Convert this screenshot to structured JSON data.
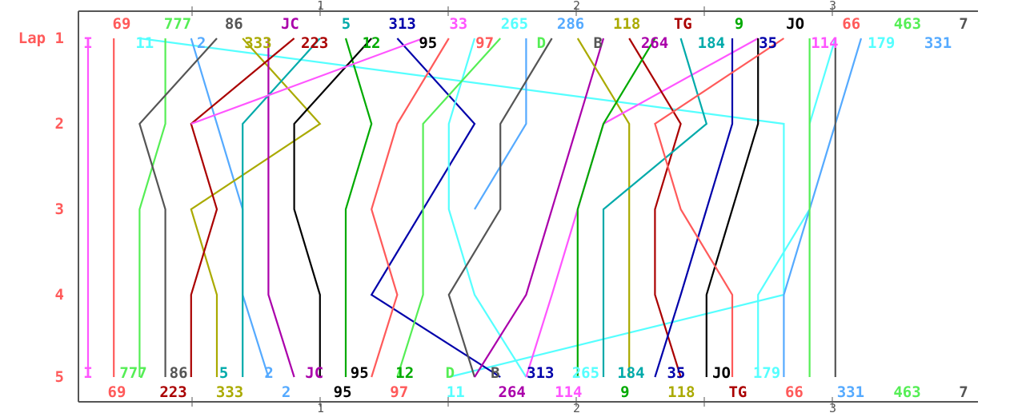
{
  "chart_data": {
    "type": "line",
    "ylabels": [
      "Lap 1",
      "2",
      "3",
      "4",
      "5"
    ],
    "top_ticks": [
      "1",
      "2",
      "3"
    ],
    "bottom_ticks": [
      "1",
      "2",
      "3"
    ],
    "cars": [
      {
        "label": "I",
        "color": "#ff55ff",
        "pos": [
          1,
          1,
          1,
          1,
          1
        ]
      },
      {
        "label": "69",
        "color": "#ff5a5a",
        "pos": [
          2,
          2,
          2,
          2,
          2
        ]
      },
      {
        "label": "11",
        "color": "#55ffff",
        "pos": [
          3,
          28,
          28,
          28,
          15
        ]
      },
      {
        "label": "777",
        "color": "#55ee55",
        "pos": [
          4,
          4,
          3,
          3,
          3
        ]
      },
      {
        "label": "2",
        "color": "#55aaff",
        "pos": [
          5,
          6,
          7,
          7,
          8
        ]
      },
      {
        "label": "86",
        "color": "#555555",
        "pos": [
          6,
          3,
          4,
          4,
          4
        ]
      },
      {
        "label": "333",
        "color": "#aaaa00",
        "pos": [
          7,
          10,
          5,
          6,
          6
        ]
      },
      {
        "label": "JC",
        "color": "#aa00aa",
        "pos": [
          8,
          8,
          8,
          8,
          9
        ]
      },
      {
        "label": "223",
        "color": "#aa0000",
        "pos": [
          9,
          5,
          6,
          5,
          5
        ]
      },
      {
        "label": "5",
        "color": "#00aaaa",
        "pos": [
          10,
          7,
          7,
          7,
          7
        ]
      },
      {
        "label": "12",
        "color": "#00aa00",
        "pos": [
          11,
          12,
          11,
          11,
          11
        ]
      },
      {
        "label": "95",
        "color": "#000000",
        "pos": [
          12,
          9,
          9,
          10,
          10
        ]
      },
      {
        "label": "313",
        "color": "#0000aa",
        "pos": [
          13,
          16,
          14,
          12,
          17
        ]
      },
      {
        "label": "33",
        "color": "#ff55ff",
        "pos": [
          14,
          5
        ]
      },
      {
        "label": "97",
        "color": "#ff5a5a",
        "pos": [
          15,
          13,
          12,
          13,
          12
        ]
      },
      {
        "label": "265",
        "color": "#55ffff",
        "pos": [
          16,
          15,
          15,
          16,
          18
        ]
      },
      {
        "label": "D",
        "color": "#55ee55",
        "pos": [
          17,
          14,
          14,
          14,
          13
        ]
      },
      {
        "label": "286",
        "color": "#55aaff",
        "pos": [
          18,
          18,
          16
        ]
      },
      {
        "label": "B",
        "color": "#555555",
        "pos": [
          19,
          17,
          17,
          15,
          16
        ]
      },
      {
        "label": "264",
        "color": "#aa00aa",
        "pos": [
          21,
          20,
          19,
          18,
          16
        ]
      },
      {
        "label": "118",
        "color": "#aaaa00",
        "pos": [
          20,
          22,
          22,
          22,
          22
        ]
      },
      {
        "label": "114",
        "color": "#ff55ff",
        "pos": [
          27,
          21,
          20,
          19,
          18
        ]
      },
      {
        "label": "TG",
        "color": "#aa0000",
        "pos": [
          22,
          24,
          23,
          23,
          24
        ]
      },
      {
        "label": "9",
        "color": "#00aa00",
        "pos": [
          23,
          21,
          20,
          20,
          20
        ]
      },
      {
        "label": "184",
        "color": "#00aaaa",
        "pos": [
          24,
          25,
          21,
          21,
          21
        ]
      },
      {
        "label": "35",
        "color": "#0000aa",
        "pos": [
          26,
          26,
          25,
          24,
          23
        ]
      },
      {
        "label": "JO",
        "color": "#000000",
        "pos": [
          27,
          27,
          26,
          25,
          25
        ]
      },
      {
        "label": "66",
        "color": "#ff5a5a",
        "pos": [
          28,
          23,
          24,
          26,
          26
        ]
      },
      {
        "label": "179",
        "color": "#55ffff",
        "pos": [
          30,
          29,
          29,
          27,
          27
        ]
      },
      {
        "label": "331",
        "color": "#55aaff",
        "pos": [
          31,
          30,
          29,
          28,
          28
        ]
      },
      {
        "label": "463",
        "color": "#55ee55",
        "pos": [
          29,
          29,
          29,
          29,
          29
        ]
      },
      {
        "label": "7",
        "color": "#555555",
        "pos": [
          30,
          30,
          30,
          30,
          30
        ]
      }
    ],
    "top_row1": [
      {
        "label": "69",
        "color": "#ff5a5a"
      },
      {
        "label": "777",
        "color": "#55ee55"
      },
      {
        "label": "86",
        "color": "#555555"
      },
      {
        "label": "JC",
        "color": "#aa00aa"
      },
      {
        "label": "5",
        "color": "#00aaaa"
      },
      {
        "label": "313",
        "color": "#0000aa"
      },
      {
        "label": "33",
        "color": "#ff55ff"
      },
      {
        "label": "265",
        "color": "#55ffff"
      },
      {
        "label": "286",
        "color": "#55aaff"
      },
      {
        "label": "118",
        "color": "#aaaa00"
      },
      {
        "label": "TG",
        "color": "#aa0000"
      },
      {
        "label": "9",
        "color": "#00aa00"
      },
      {
        "label": "JO",
        "color": "#000000"
      },
      {
        "label": "66",
        "color": "#ff5a5a"
      },
      {
        "label": "463",
        "color": "#55ee55"
      },
      {
        "label": "7",
        "color": "#555555"
      }
    ],
    "top_row2": [
      {
        "label": "I",
        "color": "#ff55ff"
      },
      {
        "label": "11",
        "color": "#55ffff"
      },
      {
        "label": "2",
        "color": "#55aaff"
      },
      {
        "label": "333",
        "color": "#aaaa00"
      },
      {
        "label": "223",
        "color": "#aa0000"
      },
      {
        "label": "12",
        "color": "#00aa00"
      },
      {
        "label": "95",
        "color": "#000000"
      },
      {
        "label": "97",
        "color": "#ff5a5a"
      },
      {
        "label": "D",
        "color": "#55ee55"
      },
      {
        "label": "B",
        "color": "#555555"
      },
      {
        "label": "264",
        "color": "#aa00aa"
      },
      {
        "label": "184",
        "color": "#00aaaa"
      },
      {
        "label": "35",
        "color": "#0000aa"
      },
      {
        "label": "114",
        "color": "#ff55ff"
      },
      {
        "label": "179",
        "color": "#55ffff"
      },
      {
        "label": "331",
        "color": "#55aaff"
      }
    ],
    "bottom_row1": [
      {
        "label": "I",
        "color": "#ff55ff"
      },
      {
        "label": "777",
        "color": "#55ee55"
      },
      {
        "label": "86",
        "color": "#555555"
      },
      {
        "label": "5",
        "color": "#00aaaa"
      },
      {
        "label": "2",
        "color": "#55aaff"
      },
      {
        "label": "JC",
        "color": "#aa00aa"
      },
      {
        "label": "95",
        "color": "#000000"
      },
      {
        "label": "12",
        "color": "#00aa00"
      },
      {
        "label": "D",
        "color": "#55ee55"
      },
      {
        "label": "B",
        "color": "#555555"
      },
      {
        "label": "313",
        "color": "#0000aa"
      },
      {
        "label": "265",
        "color": "#55ffff"
      },
      {
        "label": "184",
        "color": "#00aaaa"
      },
      {
        "label": "35",
        "color": "#0000aa"
      },
      {
        "label": "JO",
        "color": "#000000"
      },
      {
        "label": "179",
        "color": "#55ffff"
      }
    ],
    "bottom_row2": [
      {
        "label": "69",
        "color": "#ff5a5a"
      },
      {
        "label": "223",
        "color": "#aa0000"
      },
      {
        "label": "333",
        "color": "#aaaa00"
      },
      {
        "label": "2",
        "color": "#55aaff"
      },
      {
        "label": "95",
        "color": "#000000"
      },
      {
        "label": "97",
        "color": "#ff5a5a"
      },
      {
        "label": "11",
        "color": "#55ffff"
      },
      {
        "label": "264",
        "color": "#aa00aa"
      },
      {
        "label": "114",
        "color": "#ff55ff"
      },
      {
        "label": "9",
        "color": "#00aa00"
      },
      {
        "label": "118",
        "color": "#aaaa00"
      },
      {
        "label": "TG",
        "color": "#aa0000"
      },
      {
        "label": "66",
        "color": "#ff5a5a"
      },
      {
        "label": "331",
        "color": "#55aaff"
      },
      {
        "label": "463",
        "color": "#55ee55"
      },
      {
        "label": "7",
        "color": "#555555"
      }
    ]
  }
}
